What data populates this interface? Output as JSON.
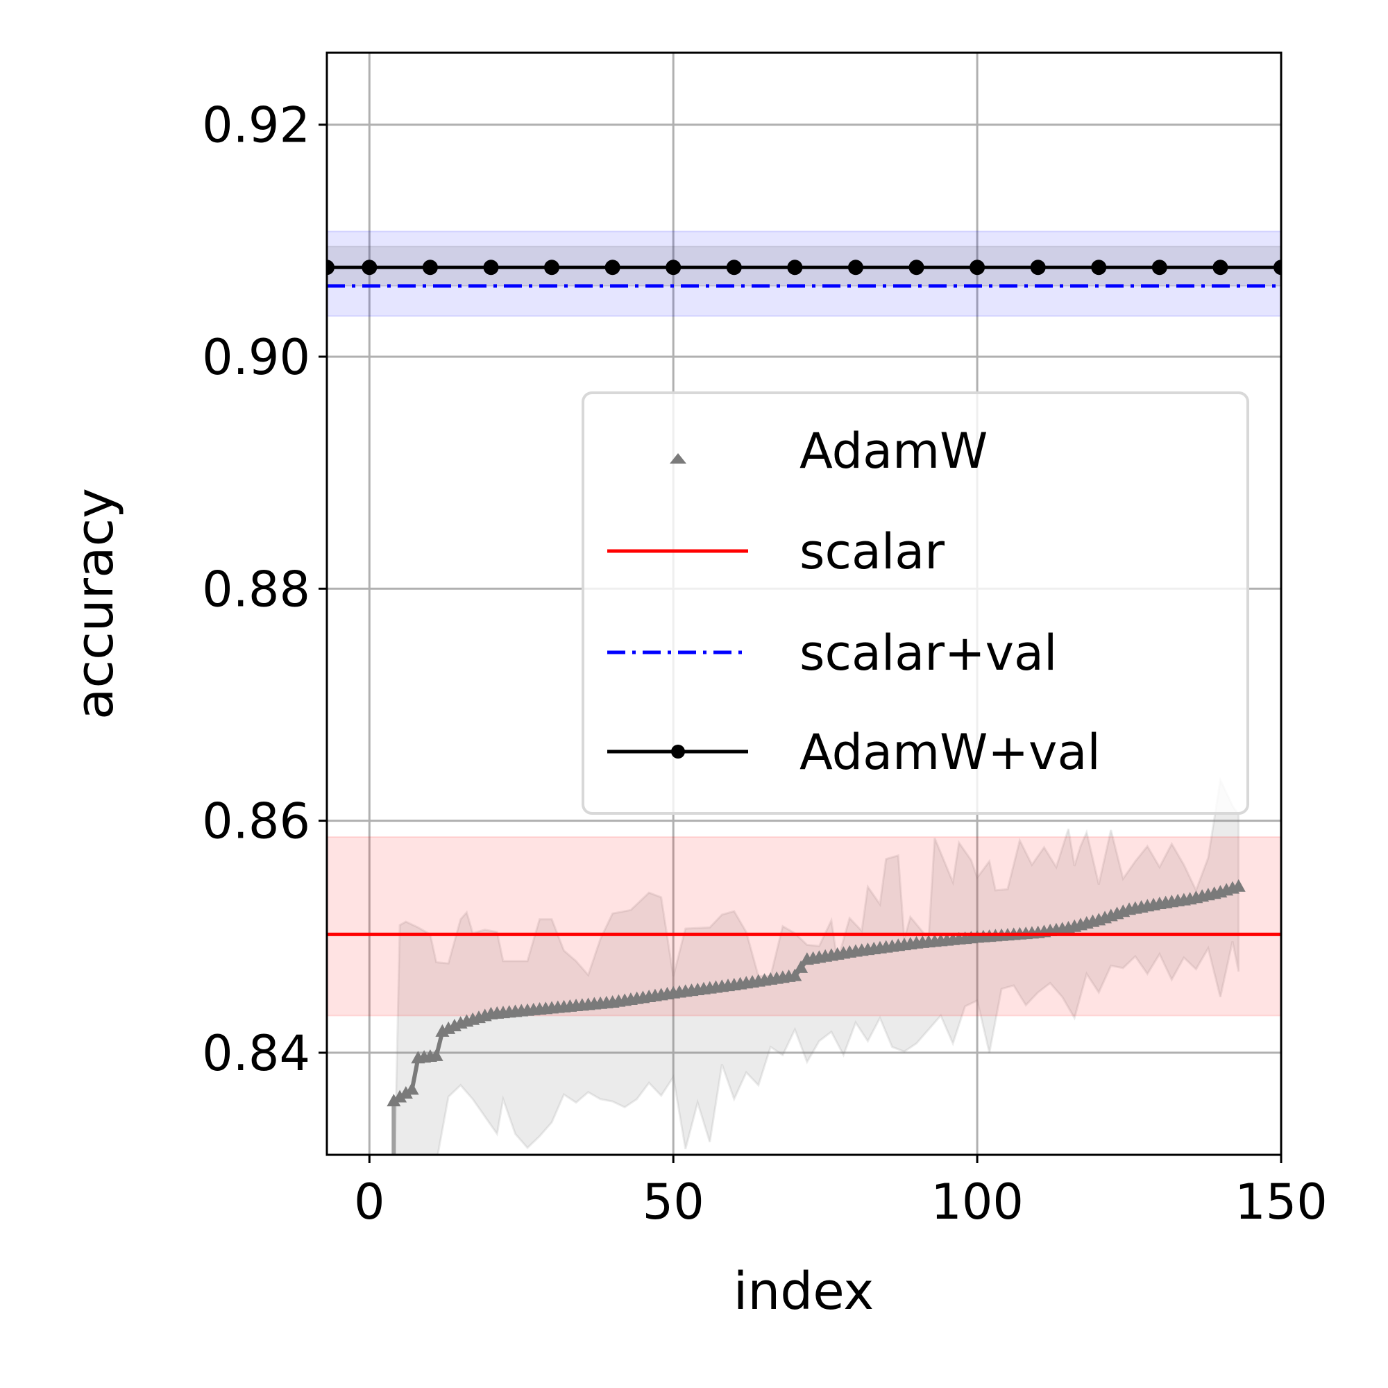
{
  "chart_data": {
    "type": "line",
    "xlabel": "index",
    "ylabel": "accuracy",
    "xlim": [
      -7,
      150
    ],
    "ylim": [
      0.8312,
      0.9262
    ],
    "grid": true,
    "legend_position": "center-right",
    "x_ticks": [
      0,
      50,
      100,
      150
    ],
    "x_tick_labels": [
      "0",
      "50",
      "100",
      "150"
    ],
    "y_ticks": [
      0.84,
      0.86,
      0.88,
      0.9,
      0.92
    ],
    "y_tick_labels": [
      "0.84",
      "0.86",
      "0.88",
      "0.90",
      "0.92"
    ],
    "colors": {
      "adamw": "#7a7a7a",
      "scalar": "#ff0000",
      "scalar_val": "#0000ff",
      "adamw_val": "#000000"
    },
    "series": [
      {
        "name": "AdamW",
        "marker": "triangle",
        "x_start": 4,
        "x_end": 143,
        "anchors": [
          [
            4,
            0.8358
          ],
          [
            7,
            0.8368
          ],
          [
            8,
            0.8395
          ],
          [
            11,
            0.8397
          ],
          [
            12,
            0.8418
          ],
          [
            15,
            0.8425
          ],
          [
            20,
            0.8433
          ],
          [
            30,
            0.8438
          ],
          [
            40,
            0.8443
          ],
          [
            50,
            0.8451
          ],
          [
            60,
            0.8458
          ],
          [
            70,
            0.8466
          ],
          [
            72,
            0.848
          ],
          [
            80,
            0.8487
          ],
          [
            90,
            0.8494
          ],
          [
            100,
            0.8499
          ],
          [
            110,
            0.8503
          ],
          [
            115,
            0.8507
          ],
          [
            120,
            0.8514
          ],
          [
            125,
            0.8523
          ],
          [
            130,
            0.8528
          ],
          [
            135,
            0.8532
          ],
          [
            140,
            0.8538
          ],
          [
            143,
            0.8543
          ]
        ],
        "band_upper": [
          [
            4,
            0.827
          ],
          [
            5,
            0.851
          ],
          [
            6,
            0.8513
          ],
          [
            8,
            0.8508
          ],
          [
            10,
            0.8502
          ],
          [
            11,
            0.8478
          ],
          [
            13,
            0.8477
          ],
          [
            15,
            0.8515
          ],
          [
            16,
            0.8521
          ],
          [
            17,
            0.8503
          ],
          [
            19,
            0.8506
          ],
          [
            21,
            0.8504
          ],
          [
            22,
            0.8479
          ],
          [
            26,
            0.8479
          ],
          [
            28,
            0.8515
          ],
          [
            30,
            0.8515
          ],
          [
            32,
            0.8488
          ],
          [
            34,
            0.8479
          ],
          [
            36,
            0.8467
          ],
          [
            38,
            0.8498
          ],
          [
            40,
            0.852
          ],
          [
            43,
            0.8523
          ],
          [
            46,
            0.8538
          ],
          [
            48,
            0.8534
          ],
          [
            50,
            0.8466
          ],
          [
            52,
            0.8507
          ],
          [
            56,
            0.8508
          ],
          [
            58,
            0.8519
          ],
          [
            60,
            0.8522
          ],
          [
            62,
            0.8504
          ],
          [
            64,
            0.8466
          ],
          [
            66,
            0.8466
          ],
          [
            68,
            0.8509
          ],
          [
            70,
            0.8503
          ],
          [
            72,
            0.8493
          ],
          [
            74,
            0.8492
          ],
          [
            76,
            0.8514
          ],
          [
            77,
            0.8479
          ],
          [
            79,
            0.8516
          ],
          [
            81,
            0.8505
          ],
          [
            82,
            0.8543
          ],
          [
            84,
            0.8528
          ],
          [
            85,
            0.8567
          ],
          [
            87,
            0.857
          ],
          [
            88,
            0.8498
          ],
          [
            89,
            0.8517
          ],
          [
            92,
            0.8498
          ],
          [
            93,
            0.8585
          ],
          [
            96,
            0.8547
          ],
          [
            97,
            0.8581
          ],
          [
            99,
            0.8566
          ],
          [
            100,
            0.8551
          ],
          [
            102,
            0.8565
          ],
          [
            103,
            0.854
          ],
          [
            105,
            0.8541
          ],
          [
            107,
            0.8583
          ],
          [
            109,
            0.8562
          ],
          [
            111,
            0.8577
          ],
          [
            113,
            0.856
          ],
          [
            115,
            0.8593
          ],
          [
            116,
            0.8561
          ],
          [
            117,
            0.8578
          ],
          [
            118,
            0.859
          ],
          [
            120,
            0.8545
          ],
          [
            122,
            0.8592
          ],
          [
            124,
            0.855
          ],
          [
            126,
            0.8565
          ],
          [
            128,
            0.8578
          ],
          [
            130,
            0.856
          ],
          [
            132,
            0.858
          ],
          [
            134,
            0.8562
          ],
          [
            136,
            0.854
          ],
          [
            138,
            0.8568
          ],
          [
            140,
            0.8635
          ],
          [
            142,
            0.8613
          ],
          [
            143,
            0.8605
          ]
        ],
        "band_lower": [
          [
            4,
            0.8212
          ],
          [
            7,
            0.822
          ],
          [
            10,
            0.8212
          ],
          [
            11,
            0.8305
          ],
          [
            13,
            0.8362
          ],
          [
            15,
            0.8372
          ],
          [
            17,
            0.836
          ],
          [
            19,
            0.8345
          ],
          [
            21,
            0.833
          ],
          [
            22,
            0.836
          ],
          [
            24,
            0.833
          ],
          [
            26,
            0.8318
          ],
          [
            28,
            0.8328
          ],
          [
            30,
            0.834
          ],
          [
            32,
            0.8364
          ],
          [
            34,
            0.8357
          ],
          [
            36,
            0.8366
          ],
          [
            38,
            0.836
          ],
          [
            40,
            0.8358
          ],
          [
            42,
            0.8353
          ],
          [
            44,
            0.836
          ],
          [
            46,
            0.8374
          ],
          [
            48,
            0.8363
          ],
          [
            50,
            0.8379
          ],
          [
            52,
            0.8317
          ],
          [
            54,
            0.8357
          ],
          [
            56,
            0.8323
          ],
          [
            58,
            0.839
          ],
          [
            60,
            0.836
          ],
          [
            62,
            0.8383
          ],
          [
            64,
            0.8372
          ],
          [
            66,
            0.8405
          ],
          [
            68,
            0.8398
          ],
          [
            70,
            0.842
          ],
          [
            72,
            0.8392
          ],
          [
            74,
            0.841
          ],
          [
            76,
            0.8418
          ],
          [
            78,
            0.8398
          ],
          [
            80,
            0.8426
          ],
          [
            82,
            0.841
          ],
          [
            84,
            0.843
          ],
          [
            86,
            0.8405
          ],
          [
            88,
            0.8401
          ],
          [
            90,
            0.8408
          ],
          [
            92,
            0.842
          ],
          [
            94,
            0.8432
          ],
          [
            96,
            0.8408
          ],
          [
            98,
            0.844
          ],
          [
            100,
            0.8445
          ],
          [
            102,
            0.84
          ],
          [
            104,
            0.8455
          ],
          [
            106,
            0.8458
          ],
          [
            108,
            0.8441
          ],
          [
            110,
            0.8452
          ],
          [
            112,
            0.846
          ],
          [
            114,
            0.8448
          ],
          [
            116,
            0.843
          ],
          [
            118,
            0.8468
          ],
          [
            120,
            0.8452
          ],
          [
            122,
            0.8475
          ],
          [
            124,
            0.8473
          ],
          [
            126,
            0.8483
          ],
          [
            128,
            0.8468
          ],
          [
            130,
            0.8485
          ],
          [
            132,
            0.8463
          ],
          [
            134,
            0.8482
          ],
          [
            136,
            0.8472
          ],
          [
            138,
            0.849
          ],
          [
            140,
            0.8448
          ],
          [
            142,
            0.8496
          ],
          [
            143,
            0.847
          ]
        ]
      },
      {
        "name": "scalar",
        "y": 0.8502,
        "band": [
          0.8432,
          0.8586
        ]
      },
      {
        "name": "scalar+val",
        "y": 0.9061,
        "band": [
          0.9035,
          0.9108
        ]
      },
      {
        "name": "AdamW+val",
        "y": 0.9077,
        "band": [
          0.9061,
          0.9095
        ],
        "marker_x": [
          -7,
          0,
          10,
          20,
          30,
          40,
          50,
          60,
          70,
          80,
          90,
          100,
          110,
          120,
          130,
          140,
          150
        ]
      }
    ],
    "legend": [
      "AdamW",
      "scalar",
      "scalar+val",
      "AdamW+val"
    ]
  }
}
